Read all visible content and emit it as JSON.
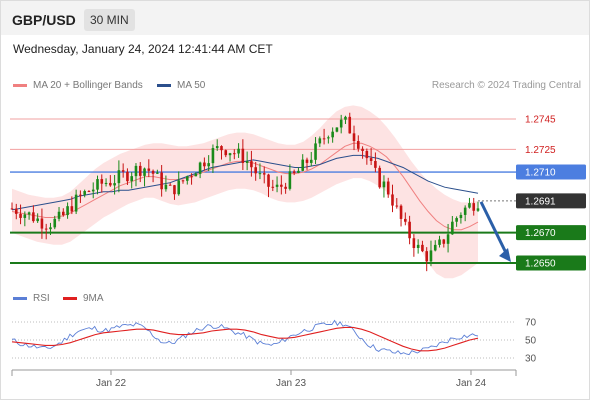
{
  "header": {
    "symbol": "GBP/USD",
    "timeframe": "30 MIN",
    "datetime": "Wednesday, January 24, 2024 12:41:44 AM CET"
  },
  "legend": {
    "items": [
      {
        "label": "MA 20 + Bollinger Bands",
        "color": "#f08080"
      },
      {
        "label": "MA 50",
        "color": "#2b4f8c"
      }
    ],
    "credit": "Research © 2024 Trading Central"
  },
  "rsi_legend": {
    "items": [
      {
        "label": "RSI",
        "color": "#5b7fd6"
      },
      {
        "label": "9MA",
        "color": "#e02020"
      }
    ]
  },
  "chart_data": [
    {
      "type": "candlestick",
      "ylim": [
        1.2625,
        1.276
      ],
      "levels": [
        {
          "label": "1.2745",
          "value": 1.2745,
          "kind": "resistance-line",
          "color": "#f2a0a0",
          "text_color": "#d02020"
        },
        {
          "label": "1.2725",
          "value": 1.2725,
          "kind": "resistance-line",
          "color": "#f2a0a0",
          "text_color": "#d02020"
        },
        {
          "label": "1.2710",
          "value": 1.271,
          "kind": "pivot",
          "color": "#4c7ee0",
          "text_color": "#ffffff"
        },
        {
          "label": "1.2691",
          "value": 1.2691,
          "kind": "last-price",
          "color": "#333333",
          "text_color": "#ffffff"
        },
        {
          "label": "1.2670",
          "value": 1.267,
          "kind": "support",
          "color": "#1a7a1a",
          "text_color": "#ffffff"
        },
        {
          "label": "1.2650",
          "value": 1.265,
          "kind": "support",
          "color": "#1a7a1a",
          "text_color": "#ffffff"
        }
      ],
      "x_ticks": [
        "Jan 22",
        "Jan 23",
        "Jan 24"
      ],
      "forecast_arrow": {
        "from": 1.2691,
        "to": 1.265,
        "color": "#2b5fa8"
      },
      "close_path": [
        1.2686,
        1.2684,
        1.2682,
        1.2679,
        1.2676,
        1.2677,
        1.268,
        1.2687,
        1.2693,
        1.2697,
        1.27,
        1.2703,
        1.2704,
        1.2707,
        1.2709,
        1.2712,
        1.2713,
        1.2709,
        1.2702,
        1.2698,
        1.2701,
        1.2707,
        1.2712,
        1.2717,
        1.2723,
        1.2726,
        1.2725,
        1.2722,
        1.2719,
        1.2712,
        1.2705,
        1.27,
        1.2699,
        1.2704,
        1.2708,
        1.2714,
        1.2721,
        1.2729,
        1.2737,
        1.2741,
        1.2743,
        1.2735,
        1.2727,
        1.2715,
        1.2705,
        1.27,
        1.2688,
        1.2675,
        1.2666,
        1.2658,
        1.2654,
        1.2659,
        1.2666,
        1.2677,
        1.2684,
        1.2688,
        1.2691
      ],
      "ma50": [
        1.2685,
        1.2686,
        1.2687,
        1.2688,
        1.2689,
        1.269,
        1.2691,
        1.2692,
        1.2694,
        1.2695,
        1.2696,
        1.2697,
        1.2697,
        1.2698,
        1.2698,
        1.2699,
        1.27,
        1.2701,
        1.2702,
        1.2703,
        1.2705,
        1.2707,
        1.2709,
        1.2711,
        1.2713,
        1.2714,
        1.2715,
        1.2716,
        1.2717,
        1.2718,
        1.2717,
        1.2716,
        1.2715,
        1.2714,
        1.2713,
        1.2713,
        1.2714,
        1.2715,
        1.2717,
        1.2719,
        1.272,
        1.2721,
        1.2721,
        1.272,
        1.2719,
        1.2717,
        1.2715,
        1.2713,
        1.271,
        1.2707,
        1.2704,
        1.2702,
        1.27,
        1.2699,
        1.2698,
        1.2697,
        1.2696
      ],
      "ma20": [
        1.2684,
        1.2683,
        1.2682,
        1.2681,
        1.268,
        1.268,
        1.2681,
        1.2683,
        1.2686,
        1.2689,
        1.2692,
        1.2695,
        1.2698,
        1.2701,
        1.2703,
        1.2705,
        1.2707,
        1.2707,
        1.2706,
        1.2705,
        1.2705,
        1.2706,
        1.2708,
        1.271,
        1.2712,
        1.2714,
        1.2716,
        1.2717,
        1.2717,
        1.2716,
        1.2714,
        1.2712,
        1.271,
        1.2709,
        1.2709,
        1.271,
        1.2712,
        1.2715,
        1.2719,
        1.2723,
        1.2727,
        1.2729,
        1.2729,
        1.2727,
        1.2724,
        1.272,
        1.2714,
        1.2707,
        1.2699,
        1.2691,
        1.2684,
        1.2678,
        1.2674,
        1.2672,
        1.2672,
        1.2674,
        1.2677
      ],
      "bb_upper": [
        1.2699,
        1.2697,
        1.2695,
        1.2694,
        1.2693,
        1.2693,
        1.2694,
        1.2697,
        1.2702,
        1.2707,
        1.2712,
        1.2716,
        1.2719,
        1.2722,
        1.2724,
        1.2726,
        1.2728,
        1.2729,
        1.2729,
        1.2728,
        1.2727,
        1.2727,
        1.2728,
        1.2729,
        1.2731,
        1.2733,
        1.2735,
        1.2736,
        1.2736,
        1.2735,
        1.2733,
        1.2731,
        1.2729,
        1.2728,
        1.2728,
        1.273,
        1.2734,
        1.2739,
        1.2745,
        1.275,
        1.2753,
        1.2754,
        1.2753,
        1.275,
        1.2746,
        1.274,
        1.2733,
        1.2725,
        1.2717,
        1.271,
        1.2704,
        1.2699,
        1.2695,
        1.2692,
        1.269,
        1.269,
        1.2691
      ],
      "bb_lower": [
        1.267,
        1.2668,
        1.2666,
        1.2664,
        1.2663,
        1.2662,
        1.2662,
        1.2664,
        1.2668,
        1.2672,
        1.2676,
        1.268,
        1.2683,
        1.2686,
        1.2689,
        1.2691,
        1.2693,
        1.2693,
        1.2691,
        1.2689,
        1.2688,
        1.2689,
        1.269,
        1.2692,
        1.2694,
        1.2696,
        1.2698,
        1.2699,
        1.2699,
        1.2698,
        1.2696,
        1.2693,
        1.2691,
        1.269,
        1.269,
        1.2691,
        1.2693,
        1.2696,
        1.2699,
        1.2702,
        1.2704,
        1.2706,
        1.2706,
        1.2704,
        1.2701,
        1.2697,
        1.269,
        1.268,
        1.267,
        1.266,
        1.265,
        1.2643,
        1.264,
        1.264,
        1.2642,
        1.2646,
        1.265
      ]
    },
    {
      "type": "line",
      "ylim": [
        20,
        80
      ],
      "y_ticks": [
        "70",
        "50",
        "30"
      ],
      "series": [
        {
          "name": "RSI",
          "color": "#5b7fd6",
          "values": [
            50,
            46,
            44,
            42,
            40,
            43,
            48,
            55,
            60,
            62,
            63,
            60,
            62,
            65,
            66,
            67,
            63,
            55,
            48,
            46,
            50,
            56,
            60,
            64,
            66,
            65,
            62,
            58,
            55,
            50,
            46,
            44,
            46,
            52,
            56,
            60,
            63,
            66,
            68,
            69,
            68,
            60,
            52,
            44,
            40,
            38,
            36,
            35,
            36,
            38,
            40,
            44,
            48,
            52,
            54,
            55,
            56
          ]
        },
        {
          "name": "9MA",
          "color": "#e02020",
          "values": [
            48,
            47,
            46,
            45,
            44,
            44,
            45,
            47,
            50,
            53,
            56,
            58,
            59,
            60,
            61,
            62,
            62,
            61,
            59,
            57,
            56,
            56,
            57,
            58,
            60,
            61,
            62,
            62,
            61,
            59,
            56,
            54,
            52,
            52,
            53,
            55,
            57,
            59,
            61,
            63,
            64,
            64,
            62,
            59,
            55,
            51,
            47,
            43,
            40,
            38,
            38,
            39,
            41,
            44,
            47,
            50,
            52
          ]
        }
      ]
    }
  ]
}
